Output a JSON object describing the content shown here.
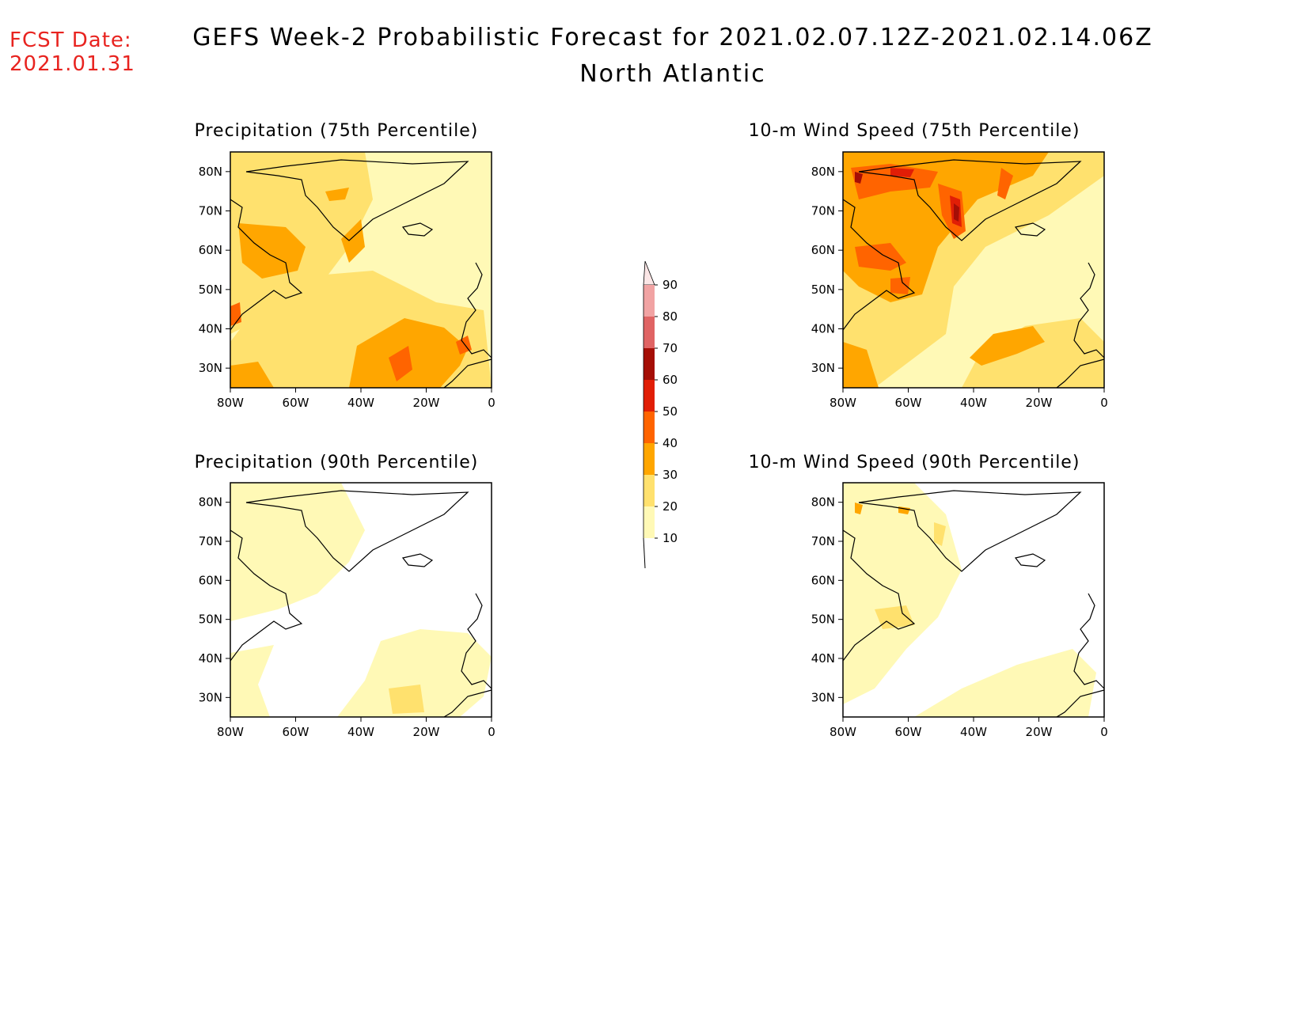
{
  "header": {
    "fcst_label": "FCST Date:",
    "fcst_date": "2021.01.31",
    "title": "GEFS Week-2 Probabilistic Forecast for 2021.02.07.12Z-2021.02.14.06Z",
    "region": "North Atlantic"
  },
  "axes": {
    "lat_labels": [
      "80N",
      "70N",
      "60N",
      "50N",
      "40N",
      "30N"
    ],
    "lon_labels": [
      "80W",
      "60W",
      "40W",
      "20W",
      "0"
    ]
  },
  "panels": [
    {
      "title": "Precipitation (75th Percentile)",
      "fill_level": "high"
    },
    {
      "title": "10-m Wind Speed (75th Percentile)",
      "fill_level": "high"
    },
    {
      "title": "Precipitation (90th Percentile)",
      "fill_level": "low"
    },
    {
      "title": "10-m Wind Speed (90th Percentile)",
      "fill_level": "low"
    }
  ],
  "colorbar": {
    "labels": [
      "90",
      "80",
      "70",
      "60",
      "50",
      "40",
      "30",
      "20",
      "10"
    ],
    "colors": [
      "#fbe6e6",
      "#f1a3a3",
      "#e06464",
      "#a50e06",
      "#e11e06",
      "#ff6400",
      "#ffa600",
      "#ffe16e",
      "#fff9b6"
    ]
  }
}
